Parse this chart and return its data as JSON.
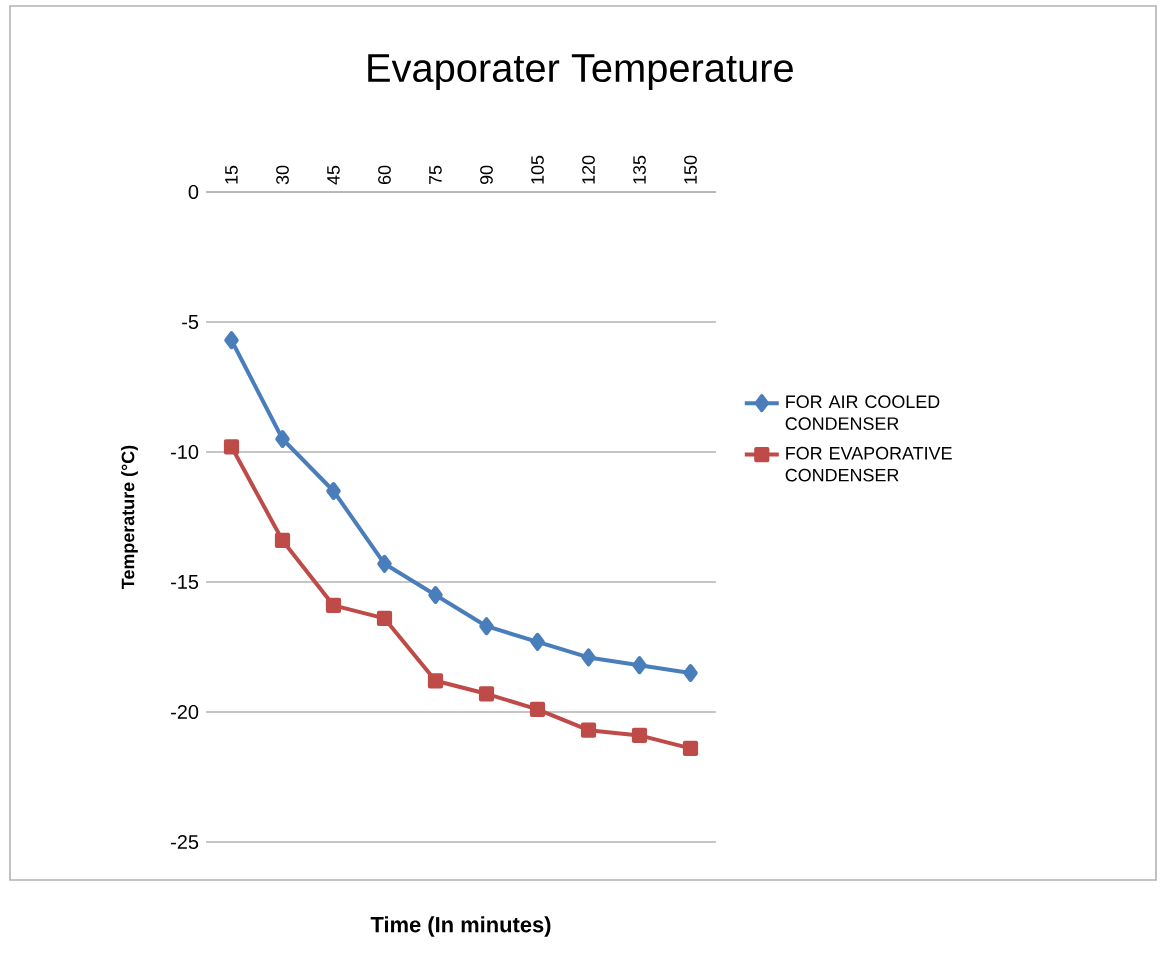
{
  "chart_data": {
    "type": "line",
    "title": "Evaporater Temperature",
    "xlabel": "Time (In minutes)",
    "ylabel": "Temperature (°C)",
    "categories": [
      "15",
      "30",
      "45",
      "60",
      "75",
      "90",
      "105",
      "120",
      "135",
      "150"
    ],
    "series": [
      {
        "name": "FOR AIR COOLED CONDENSER",
        "color": "#4a7ebb",
        "marker": "diamond",
        "values": [
          -5.7,
          -9.5,
          -11.5,
          -14.3,
          -15.5,
          -16.7,
          -17.3,
          -17.9,
          -18.2,
          -18.5
        ]
      },
      {
        "name": "FOR EVAPORATIVE CONDENSER",
        "color": "#be4b48",
        "marker": "square",
        "values": [
          -9.8,
          -13.4,
          -15.9,
          -16.4,
          -18.8,
          -19.3,
          -19.9,
          -20.7,
          -20.9,
          -21.4
        ]
      }
    ],
    "ylim": [
      -25,
      0
    ],
    "yticks": [
      -25,
      -20,
      -15,
      -10,
      -5,
      0
    ],
    "grid": "y",
    "legend": "right"
  }
}
